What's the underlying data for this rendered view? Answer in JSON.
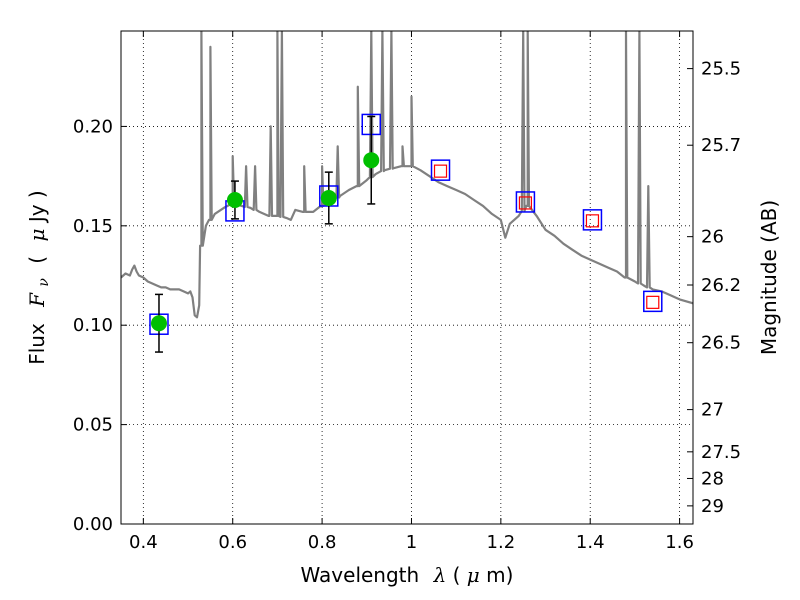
{
  "chart_data": {
    "type": "scatter",
    "title": "",
    "xlabel": {
      "prefix": "Wavelength",
      "symbol": "λ",
      "unit_open": " (",
      "unit_math": "μ",
      "unit_rest": "m)"
    },
    "ylabel": {
      "prefix": "Flux",
      "symbol": "F",
      "subscript": "ν",
      "unit_open": "(",
      "unit_math": "μ",
      "unit_rest": "Jy )"
    },
    "y2label": "Magnitude (AB)",
    "xlim": [
      0.35,
      1.63
    ],
    "ylim": [
      0.0,
      0.248
    ],
    "grid": true,
    "x_ticks": [
      0.4,
      0.6,
      0.8,
      1.0,
      1.2,
      1.4,
      1.6
    ],
    "x_tick_labels": [
      "0.4",
      "0.6",
      "0.8",
      "1",
      "1.2",
      "1.4",
      "1.6"
    ],
    "y_ticks": [
      0.0,
      0.05,
      0.1,
      0.15,
      0.2
    ],
    "y_tick_labels": [
      "0.00",
      "0.05",
      "0.10",
      "0.15",
      "0.20"
    ],
    "y2_ticks": [
      25.5,
      25.7,
      26.0,
      26.2,
      26.5,
      27.0,
      27.5,
      28.0,
      29.0
    ],
    "y2_tick_labels": [
      "25.5",
      "25.7",
      "26",
      "26.2",
      "26.5",
      "27",
      "27.5",
      "28",
      "29"
    ],
    "colors": {
      "spectrum": "#808080",
      "observed": "#00bf00",
      "errorbar": "#000000",
      "model_box": "#0000ff",
      "model_box_nir": "#ff0000"
    },
    "series": [
      {
        "kind": "model-spectrum",
        "points": [
          [
            0.35,
            0.124
          ],
          [
            0.36,
            0.126
          ],
          [
            0.37,
            0.125
          ],
          [
            0.375,
            0.128
          ],
          [
            0.38,
            0.13
          ],
          [
            0.385,
            0.127
          ],
          [
            0.39,
            0.125
          ],
          [
            0.4,
            0.124
          ],
          [
            0.41,
            0.122
          ],
          [
            0.42,
            0.121
          ],
          [
            0.43,
            0.12
          ],
          [
            0.44,
            0.119
          ],
          [
            0.45,
            0.119
          ],
          [
            0.46,
            0.118
          ],
          [
            0.47,
            0.118
          ],
          [
            0.48,
            0.118
          ],
          [
            0.49,
            0.117
          ],
          [
            0.5,
            0.116
          ],
          [
            0.505,
            0.117
          ],
          [
            0.51,
            0.114
          ],
          [
            0.515,
            0.105
          ],
          [
            0.52,
            0.104
          ],
          [
            0.525,
            0.11
          ],
          [
            0.53,
            0.14
          ],
          [
            0.54,
            0.15
          ],
          [
            0.55,
            0.153
          ],
          [
            0.56,
            0.156
          ],
          [
            0.58,
            0.159
          ],
          [
            0.6,
            0.161
          ],
          [
            0.62,
            0.16
          ],
          [
            0.64,
            0.159
          ],
          [
            0.66,
            0.157
          ],
          [
            0.68,
            0.155
          ],
          [
            0.7,
            0.155
          ],
          [
            0.72,
            0.154
          ],
          [
            0.73,
            0.153
          ],
          [
            0.74,
            0.158
          ],
          [
            0.76,
            0.157
          ],
          [
            0.78,
            0.157
          ],
          [
            0.8,
            0.16
          ],
          [
            0.82,
            0.162
          ],
          [
            0.84,
            0.165
          ],
          [
            0.86,
            0.168
          ],
          [
            0.88,
            0.17
          ],
          [
            0.9,
            0.173
          ],
          [
            0.92,
            0.176
          ],
          [
            0.94,
            0.178
          ],
          [
            0.96,
            0.179
          ],
          [
            0.98,
            0.18
          ],
          [
            1.0,
            0.18
          ],
          [
            1.02,
            0.178
          ],
          [
            1.04,
            0.175
          ],
          [
            1.06,
            0.172
          ],
          [
            1.08,
            0.17
          ],
          [
            1.1,
            0.168
          ],
          [
            1.12,
            0.166
          ],
          [
            1.14,
            0.163
          ],
          [
            1.16,
            0.16
          ],
          [
            1.18,
            0.156
          ],
          [
            1.2,
            0.153
          ],
          [
            1.21,
            0.144
          ],
          [
            1.22,
            0.151
          ],
          [
            1.24,
            0.155
          ],
          [
            1.26,
            0.16
          ],
          [
            1.28,
            0.155
          ],
          [
            1.3,
            0.148
          ],
          [
            1.32,
            0.145
          ],
          [
            1.34,
            0.141
          ],
          [
            1.36,
            0.138
          ],
          [
            1.38,
            0.135
          ],
          [
            1.4,
            0.133
          ],
          [
            1.42,
            0.131
          ],
          [
            1.44,
            0.129
          ],
          [
            1.46,
            0.127
          ],
          [
            1.48,
            0.124
          ],
          [
            1.5,
            0.122
          ],
          [
            1.52,
            0.12
          ],
          [
            1.54,
            0.118
          ],
          [
            1.56,
            0.117
          ],
          [
            1.58,
            0.115
          ],
          [
            1.6,
            0.113
          ],
          [
            1.63,
            0.111
          ]
        ],
        "emission_lines": [
          [
            0.53,
            0.248
          ],
          [
            0.55,
            0.24
          ],
          [
            0.6,
            0.185
          ],
          [
            0.63,
            0.18
          ],
          [
            0.65,
            0.18
          ],
          [
            0.685,
            0.2
          ],
          [
            0.7,
            0.248
          ],
          [
            0.71,
            0.248
          ],
          [
            0.76,
            0.18
          ],
          [
            0.8,
            0.18
          ],
          [
            0.835,
            0.19
          ],
          [
            0.88,
            0.22
          ],
          [
            0.91,
            0.248
          ],
          [
            0.935,
            0.248
          ],
          [
            0.955,
            0.248
          ],
          [
            0.98,
            0.19
          ],
          [
            1.0,
            0.215
          ],
          [
            1.25,
            0.248
          ],
          [
            1.26,
            0.248
          ],
          [
            1.48,
            0.248
          ],
          [
            1.51,
            0.248
          ],
          [
            1.53,
            0.17
          ]
        ]
      },
      {
        "name": "",
        "kind": "observed",
        "points": [
          {
            "x": 0.435,
            "y": 0.101,
            "err": 0.0145
          },
          {
            "x": 0.605,
            "y": 0.163,
            "err": 0.0095
          },
          {
            "x": 0.815,
            "y": 0.164,
            "err": 0.013
          },
          {
            "x": 0.91,
            "y": 0.183,
            "err": 0.022
          }
        ]
      },
      {
        "name": "",
        "kind": "model-photometry",
        "points": [
          {
            "x": 0.435,
            "y": 0.1005
          },
          {
            "x": 0.605,
            "y": 0.1575
          },
          {
            "x": 0.815,
            "y": 0.165
          },
          {
            "x": 0.91,
            "y": 0.201
          },
          {
            "x": 1.065,
            "y": 0.178
          },
          {
            "x": 1.255,
            "y": 0.162
          },
          {
            "x": 1.405,
            "y": 0.153
          },
          {
            "x": 1.54,
            "y": 0.112
          }
        ]
      },
      {
        "name": "",
        "kind": "model-photometry-nir",
        "points": [
          {
            "x": 1.065,
            "y": 0.1775
          },
          {
            "x": 1.255,
            "y": 0.1615
          },
          {
            "x": 1.405,
            "y": 0.1525
          },
          {
            "x": 1.54,
            "y": 0.1115
          }
        ]
      }
    ]
  }
}
